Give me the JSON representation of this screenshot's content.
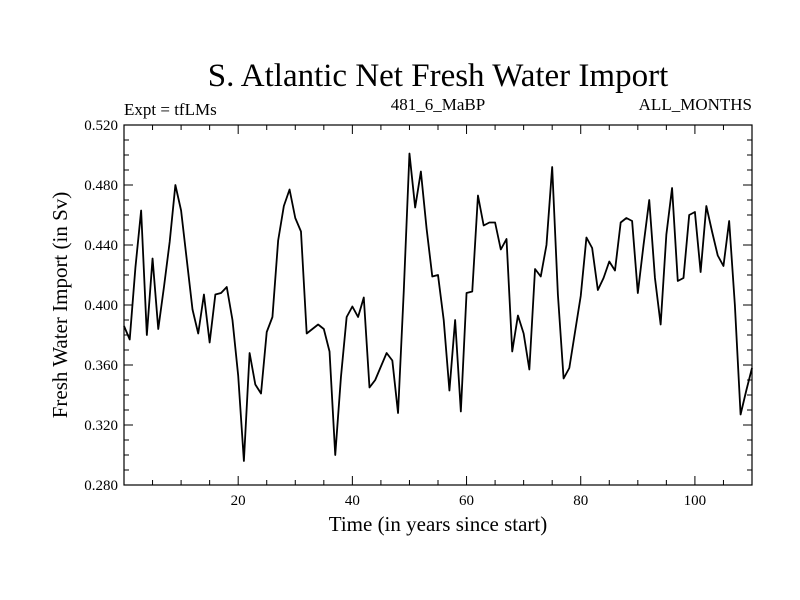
{
  "chart_data": {
    "type": "line",
    "title": "S. Atlantic Net Fresh Water Import",
    "subtitle_left": "Expt = tfLMs",
    "subtitle_center": "481_6_MaBP",
    "subtitle_right": "ALL_MONTHS",
    "xlabel": "Time (in years since start)",
    "ylabel": "Fresh Water Import (in Sv)",
    "xlim": [
      0,
      110
    ],
    "ylim": [
      0.28,
      0.52
    ],
    "xticks": [
      20,
      40,
      60,
      80,
      100
    ],
    "xtick_labels": [
      "20",
      "40",
      "60",
      "80",
      "100"
    ],
    "yticks": [
      0.28,
      0.32,
      0.36,
      0.4,
      0.44,
      0.48,
      0.52
    ],
    "ytick_labels": [
      "0.280",
      "0.320",
      "0.360",
      "0.400",
      "0.440",
      "0.480",
      "0.520"
    ],
    "grid": false,
    "series": [
      {
        "name": "fresh_water_import",
        "x": [
          0,
          1,
          2,
          3,
          4,
          5,
          6,
          7,
          8,
          9,
          10,
          11,
          12,
          13,
          14,
          15,
          16,
          17,
          18,
          19,
          20,
          21,
          22,
          23,
          24,
          25,
          26,
          27,
          28,
          29,
          30,
          31,
          32,
          33,
          34,
          35,
          36,
          37,
          38,
          39,
          40,
          41,
          42,
          43,
          44,
          45,
          46,
          47,
          48,
          49,
          50,
          51,
          52,
          53,
          54,
          55,
          56,
          57,
          58,
          59,
          60,
          61,
          62,
          63,
          64,
          65,
          66,
          67,
          68,
          69,
          70,
          71,
          72,
          73,
          74,
          75,
          76,
          77,
          78,
          79,
          80,
          81,
          82,
          83,
          84,
          85,
          86,
          87,
          88,
          89,
          90,
          91,
          92,
          93,
          94,
          95,
          96,
          97,
          98,
          99,
          100,
          101,
          102,
          103,
          104,
          105,
          106,
          107,
          108,
          109,
          110
        ],
        "values": [
          0.386,
          0.377,
          0.425,
          0.463,
          0.38,
          0.431,
          0.384,
          0.412,
          0.442,
          0.48,
          0.463,
          0.43,
          0.397,
          0.381,
          0.407,
          0.375,
          0.407,
          0.408,
          0.412,
          0.39,
          0.353,
          0.296,
          0.368,
          0.347,
          0.341,
          0.382,
          0.392,
          0.443,
          0.466,
          0.477,
          0.458,
          0.449,
          0.381,
          0.384,
          0.387,
          0.384,
          0.369,
          0.3,
          0.352,
          0.392,
          0.399,
          0.392,
          0.405,
          0.345,
          0.35,
          0.359,
          0.368,
          0.363,
          0.328,
          0.409,
          0.501,
          0.465,
          0.489,
          0.451,
          0.419,
          0.42,
          0.39,
          0.343,
          0.39,
          0.329,
          0.408,
          0.409,
          0.473,
          0.453,
          0.455,
          0.455,
          0.437,
          0.444,
          0.369,
          0.393,
          0.381,
          0.357,
          0.424,
          0.419,
          0.44,
          0.492,
          0.407,
          0.351,
          0.358,
          0.382,
          0.406,
          0.445,
          0.438,
          0.41,
          0.418,
          0.429,
          0.423,
          0.455,
          0.458,
          0.456,
          0.408,
          0.44,
          0.47,
          0.418,
          0.387,
          0.447,
          0.478,
          0.416,
          0.418,
          0.46,
          0.462,
          0.422,
          0.466,
          0.449,
          0.433,
          0.426,
          0.456,
          0.4,
          0.327,
          0.343,
          0.358
        ]
      }
    ]
  }
}
